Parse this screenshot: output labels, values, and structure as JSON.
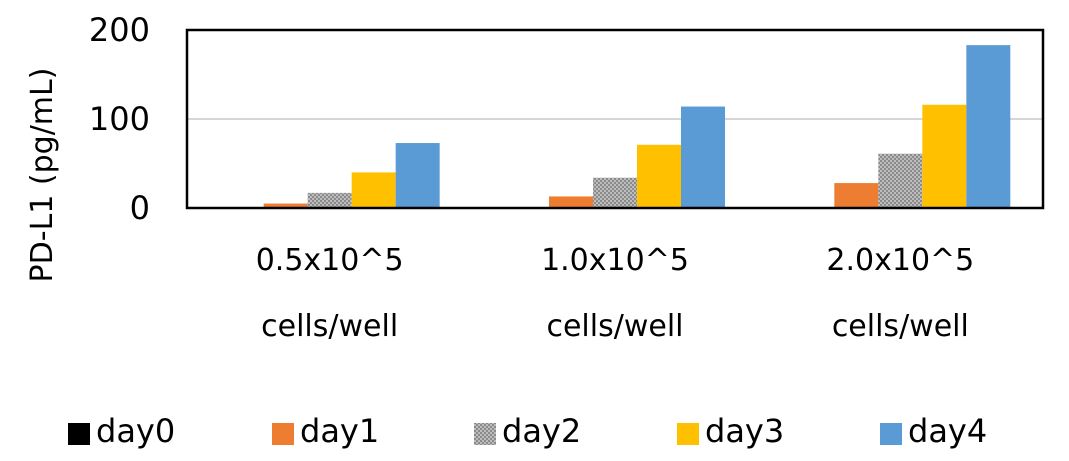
{
  "chart_data": {
    "type": "bar",
    "categories": [
      [
        "0.5x10^5",
        "cells/well"
      ],
      [
        "1.0x10^5",
        "cells/well"
      ],
      [
        "2.0x10^5",
        "cells/well"
      ]
    ],
    "series": [
      {
        "name": "day0",
        "color": "#000000",
        "pattern": "solid",
        "values": [
          0,
          0,
          0
        ]
      },
      {
        "name": "day1",
        "color": "#ED7D31",
        "pattern": "solid",
        "values": [
          5,
          13,
          28
        ]
      },
      {
        "name": "day2",
        "color": "#A5A5A5",
        "pattern": "dotted",
        "values": [
          17,
          34,
          61
        ]
      },
      {
        "name": "day3",
        "color": "#FFC000",
        "pattern": "solid",
        "values": [
          40,
          71,
          116
        ]
      },
      {
        "name": "day4",
        "color": "#5B9BD5",
        "pattern": "solid",
        "values": [
          73,
          114,
          183
        ]
      }
    ],
    "xlabel": "",
    "ylabel": "PD-L1 (pg/mL)",
    "ylim": [
      0,
      200
    ],
    "yticks": [
      0,
      100,
      200
    ],
    "grid": true,
    "legend_position": "bottom"
  }
}
